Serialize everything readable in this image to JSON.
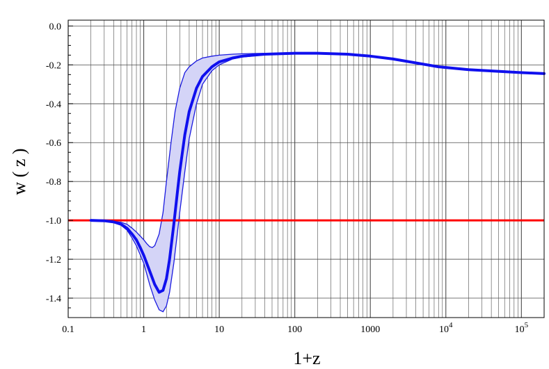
{
  "chart_data": {
    "type": "line",
    "title": "",
    "xlabel": "1+z",
    "ylabel": "w ( z )",
    "x_scale": "log",
    "xlim": [
      0.1,
      200000
    ],
    "ylim": [
      -1.5,
      0.03
    ],
    "grid": true,
    "x_ticks": [
      {
        "value": 0.1,
        "label": "0.1"
      },
      {
        "value": 1,
        "label": "1"
      },
      {
        "value": 10,
        "label": "10"
      },
      {
        "value": 100,
        "label": "100"
      },
      {
        "value": 1000,
        "label": "1000"
      },
      {
        "value": 10000,
        "label": "10",
        "sup": "4"
      },
      {
        "value": 100000,
        "label": "10",
        "sup": "5"
      }
    ],
    "y_ticks": [
      {
        "value": 0.0,
        "label": "0.0"
      },
      {
        "value": -0.2,
        "label": "-0.2"
      },
      {
        "value": -0.4,
        "label": "-0.4"
      },
      {
        "value": -0.6,
        "label": "-0.6"
      },
      {
        "value": -0.8,
        "label": "-0.8"
      },
      {
        "value": -1.0,
        "label": "-1.0"
      },
      {
        "value": -1.2,
        "label": "-1.2"
      },
      {
        "value": -1.4,
        "label": "-1.4"
      }
    ],
    "colors": {
      "best_fit": "#1010ee",
      "band_fill": "#d4d4f7",
      "band_edge": "#1a1ae0",
      "reference": "#ff0000",
      "grid": "#4a4a4a"
    },
    "series": [
      {
        "role": "best_fit",
        "x": [
          0.2,
          0.3,
          0.4,
          0.5,
          0.6,
          0.7,
          0.8,
          0.9,
          1.0,
          1.2,
          1.4,
          1.6,
          1.8,
          2.0,
          2.2,
          2.5,
          2.8,
          3.0,
          3.5,
          4.0,
          5.0,
          6.0,
          8.0,
          10,
          15,
          20,
          40,
          100,
          200,
          500,
          1000,
          2000,
          4000,
          8000,
          20000,
          100000,
          200000
        ],
        "y": [
          -1.0,
          -1.002,
          -1.008,
          -1.02,
          -1.04,
          -1.07,
          -1.1,
          -1.14,
          -1.18,
          -1.26,
          -1.33,
          -1.37,
          -1.36,
          -1.3,
          -1.2,
          -1.02,
          -0.85,
          -0.75,
          -0.56,
          -0.44,
          -0.32,
          -0.26,
          -0.21,
          -0.185,
          -0.165,
          -0.155,
          -0.145,
          -0.14,
          -0.14,
          -0.145,
          -0.155,
          -0.17,
          -0.19,
          -0.21,
          -0.225,
          -0.24,
          -0.245
        ]
      },
      {
        "role": "band_upper",
        "x": [
          0.2,
          0.3,
          0.4,
          0.5,
          0.6,
          0.7,
          0.8,
          1.0,
          1.1,
          1.2,
          1.3,
          1.4,
          1.6,
          1.8,
          2.0,
          2.3,
          2.6,
          3.0,
          3.5,
          4.0,
          5.0,
          6.0,
          8.0,
          10,
          15,
          20,
          40,
          100,
          200
        ],
        "y": [
          -1.0,
          -1.0,
          -1.005,
          -1.01,
          -1.02,
          -1.04,
          -1.06,
          -1.1,
          -1.12,
          -1.135,
          -1.14,
          -1.13,
          -1.07,
          -0.96,
          -0.8,
          -0.6,
          -0.44,
          -0.32,
          -0.24,
          -0.21,
          -0.18,
          -0.165,
          -0.155,
          -0.15,
          -0.145,
          -0.143,
          -0.14,
          -0.14,
          -0.14
        ]
      },
      {
        "role": "band_lower",
        "x": [
          0.2,
          0.3,
          0.4,
          0.5,
          0.6,
          0.7,
          0.8,
          1.0,
          1.2,
          1.4,
          1.6,
          1.8,
          2.0,
          2.2,
          2.5,
          2.8,
          3.0,
          3.5,
          4.0,
          5.0,
          6.0,
          8.0,
          10,
          15,
          20,
          40,
          100,
          200
        ],
        "y": [
          -1.0,
          -1.003,
          -1.01,
          -1.025,
          -1.05,
          -1.09,
          -1.13,
          -1.22,
          -1.33,
          -1.41,
          -1.46,
          -1.47,
          -1.44,
          -1.37,
          -1.22,
          -1.06,
          -0.96,
          -0.75,
          -0.58,
          -0.4,
          -0.3,
          -0.23,
          -0.2,
          -0.17,
          -0.16,
          -0.148,
          -0.142,
          -0.14
        ]
      },
      {
        "role": "reference",
        "x": [
          0.1,
          200000
        ],
        "y": [
          -1.0,
          -1.0
        ]
      }
    ]
  }
}
